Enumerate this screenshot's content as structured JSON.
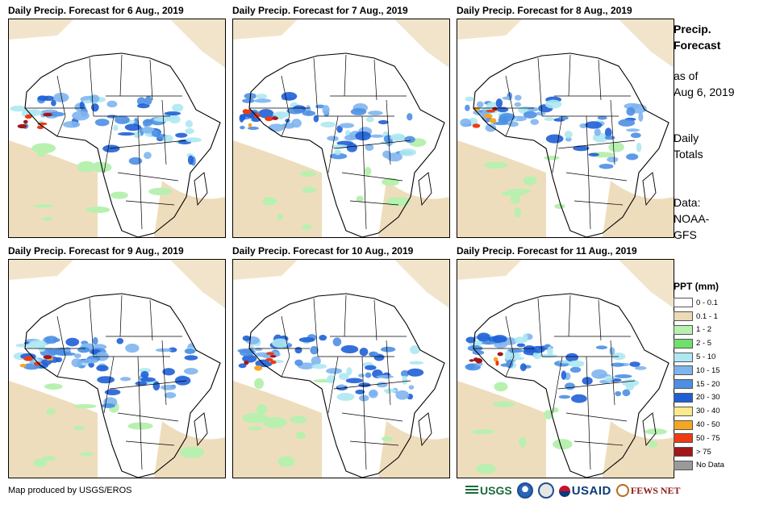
{
  "panels": [
    {
      "title": "Daily Precip. Forecast for 6 Aug., 2019"
    },
    {
      "title": "Daily Precip. Forecast for 7 Aug., 2019"
    },
    {
      "title": "Daily Precip. Forecast for 8 Aug., 2019"
    },
    {
      "title": "Daily Precip. Forecast for 9 Aug., 2019"
    },
    {
      "title": "Daily Precip. Forecast for 10 Aug., 2019"
    },
    {
      "title": "Daily Precip. Forecast for 11 Aug., 2019"
    }
  ],
  "side": {
    "heading_line1": "Precip.",
    "heading_line2": "Forecast",
    "asof_line1": "as of",
    "asof_line2": "Aug 6, 2019",
    "totals_line1": "Daily",
    "totals_line2": "Totals",
    "data_line1": "Data:",
    "data_line2": "NOAA-",
    "data_line3": "GFS"
  },
  "legend": {
    "title": "PPT (mm)",
    "items": [
      {
        "label": "0 - 0.1",
        "color": "#ffffff"
      },
      {
        "label": "0.1 - 1",
        "color": "#ecd9b5"
      },
      {
        "label": "1 - 2",
        "color": "#b8f0b0"
      },
      {
        "label": "2 - 5",
        "color": "#6fe06a"
      },
      {
        "label": "5 - 10",
        "color": "#aee8f2"
      },
      {
        "label": "10 - 15",
        "color": "#7fb5ee"
      },
      {
        "label": "15 - 20",
        "color": "#4d8fe3"
      },
      {
        "label": "20 - 30",
        "color": "#1f5fd6"
      },
      {
        "label": "30 - 40",
        "color": "#fde98c"
      },
      {
        "label": "40 - 50",
        "color": "#f5a623"
      },
      {
        "label": "50 - 75",
        "color": "#ee3b12"
      },
      {
        "label": "> 75",
        "color": "#a3161a"
      },
      {
        "label": "No Data",
        "color": "#9a9a9a"
      }
    ]
  },
  "credit": "Map produced by USGS/EROS",
  "logos": {
    "usgs": "USGS",
    "usaid": "USAID",
    "fews": "FEWS NET"
  }
}
